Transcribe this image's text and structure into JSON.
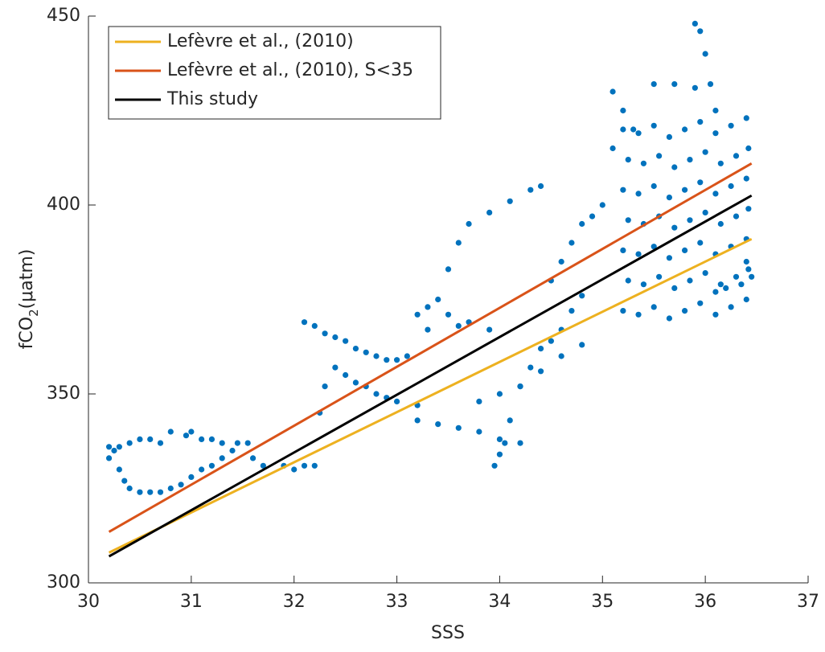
{
  "chart_data": {
    "type": "scatter",
    "xlabel": "SSS",
    "ylabel": [
      "fCO",
      "2",
      "(μatm)"
    ],
    "xlim": [
      30,
      37
    ],
    "xticks": [
      30,
      31,
      32,
      33,
      34,
      35,
      36,
      37
    ],
    "ylim": [
      300,
      450
    ],
    "yticks": [
      300,
      350,
      400,
      450
    ],
    "color": "#0072bd",
    "x": [
      30.2,
      30.25,
      30.3,
      30.4,
      30.5,
      30.6,
      30.7,
      30.8,
      30.95,
      31.0,
      31.1,
      31.2,
      31.3,
      31.45,
      31.55,
      30.2,
      30.3,
      30.35,
      30.4,
      30.5,
      30.6,
      30.7,
      30.8,
      30.9,
      31.0,
      31.1,
      31.2,
      31.3,
      31.4,
      31.6,
      31.7,
      31.9,
      32.0,
      32.1,
      32.2,
      32.1,
      32.2,
      32.3,
      32.4,
      32.5,
      32.6,
      32.7,
      32.8,
      32.9,
      33.0,
      33.1,
      32.25,
      32.3,
      32.4,
      32.5,
      32.6,
      32.7,
      32.8,
      32.9,
      33.0,
      33.2,
      33.3,
      33.4,
      33.5,
      33.6,
      33.7,
      33.9,
      34.1,
      34.3,
      34.4,
      33.2,
      33.3,
      33.5,
      33.6,
      33.7,
      33.9,
      33.2,
      33.4,
      33.6,
      33.8,
      34.0,
      34.2,
      33.95,
      34.0,
      34.05,
      34.1,
      34.2,
      34.3,
      34.4,
      34.5,
      34.6,
      34.7,
      34.8,
      33.8,
      34.0,
      34.2,
      34.4,
      34.6,
      34.8,
      34.5,
      34.6,
      34.7,
      34.8,
      34.9,
      35.0,
      35.1,
      35.1,
      35.2,
      35.3,
      35.2,
      35.35,
      35.5,
      35.65,
      35.8,
      35.95,
      36.1,
      36.25,
      36.4,
      35.25,
      35.4,
      35.55,
      35.7,
      35.85,
      36.0,
      36.15,
      36.3,
      36.42,
      35.2,
      35.35,
      35.5,
      35.65,
      35.8,
      35.95,
      36.1,
      36.25,
      36.4,
      35.25,
      35.4,
      35.55,
      35.7,
      35.85,
      36.0,
      36.15,
      36.3,
      36.42,
      35.2,
      35.35,
      35.5,
      35.65,
      35.8,
      35.95,
      36.1,
      36.25,
      36.4,
      35.25,
      35.4,
      35.55,
      35.7,
      35.85,
      36.0,
      36.15,
      36.3,
      36.42,
      35.2,
      35.35,
      35.5,
      35.65,
      35.8,
      35.95,
      36.1,
      36.25,
      36.4,
      35.9,
      35.95,
      36.0,
      36.05,
      36.1,
      35.5,
      35.7,
      35.9,
      36.4,
      36.45,
      36.35,
      36.2,
      36.1
    ],
    "values": [
      336,
      335,
      336,
      337,
      338,
      338,
      337,
      340,
      339,
      340,
      338,
      338,
      337,
      337,
      337,
      333,
      330,
      327,
      325,
      324,
      324,
      324,
      325,
      326,
      328,
      330,
      331,
      333,
      335,
      333,
      331,
      331,
      330,
      331,
      331,
      369,
      368,
      366,
      365,
      364,
      362,
      361,
      360,
      359,
      359,
      360,
      345,
      352,
      357,
      355,
      353,
      352,
      350,
      349,
      348,
      347,
      367,
      375,
      383,
      390,
      395,
      398,
      401,
      404,
      405,
      371,
      373,
      371,
      368,
      369,
      367,
      343,
      342,
      341,
      340,
      338,
      337,
      331,
      334,
      337,
      343,
      352,
      357,
      362,
      364,
      367,
      372,
      376,
      348,
      350,
      352,
      356,
      360,
      363,
      380,
      385,
      390,
      395,
      397,
      400,
      415,
      430,
      425,
      420,
      372,
      371,
      373,
      370,
      372,
      374,
      371,
      373,
      375,
      380,
      379,
      381,
      378,
      380,
      382,
      379,
      381,
      383,
      388,
      387,
      389,
      386,
      388,
      390,
      387,
      389,
      391,
      396,
      395,
      397,
      394,
      396,
      398,
      395,
      397,
      399,
      404,
      403,
      405,
      402,
      404,
      406,
      403,
      405,
      407,
      412,
      411,
      413,
      410,
      412,
      414,
      411,
      413,
      415,
      420,
      419,
      421,
      418,
      420,
      422,
      419,
      421,
      423,
      448,
      446,
      440,
      432,
      425,
      432,
      432,
      431,
      385,
      381,
      379,
      378,
      377
    ],
    "series": [
      {
        "name": "Lefèvre et al., (2010)",
        "color": "#edb120",
        "x": [
          30.2,
          36.45
        ],
        "values": [
          308,
          391
        ]
      },
      {
        "name": "Lefèvre et al., (2010), S<35",
        "color": "#d95319",
        "x": [
          30.2,
          36.45
        ],
        "values": [
          313.5,
          411
        ]
      },
      {
        "name": "This study",
        "color": "#000000",
        "x": [
          30.2,
          36.45
        ],
        "values": [
          307,
          402.5
        ]
      }
    ]
  }
}
